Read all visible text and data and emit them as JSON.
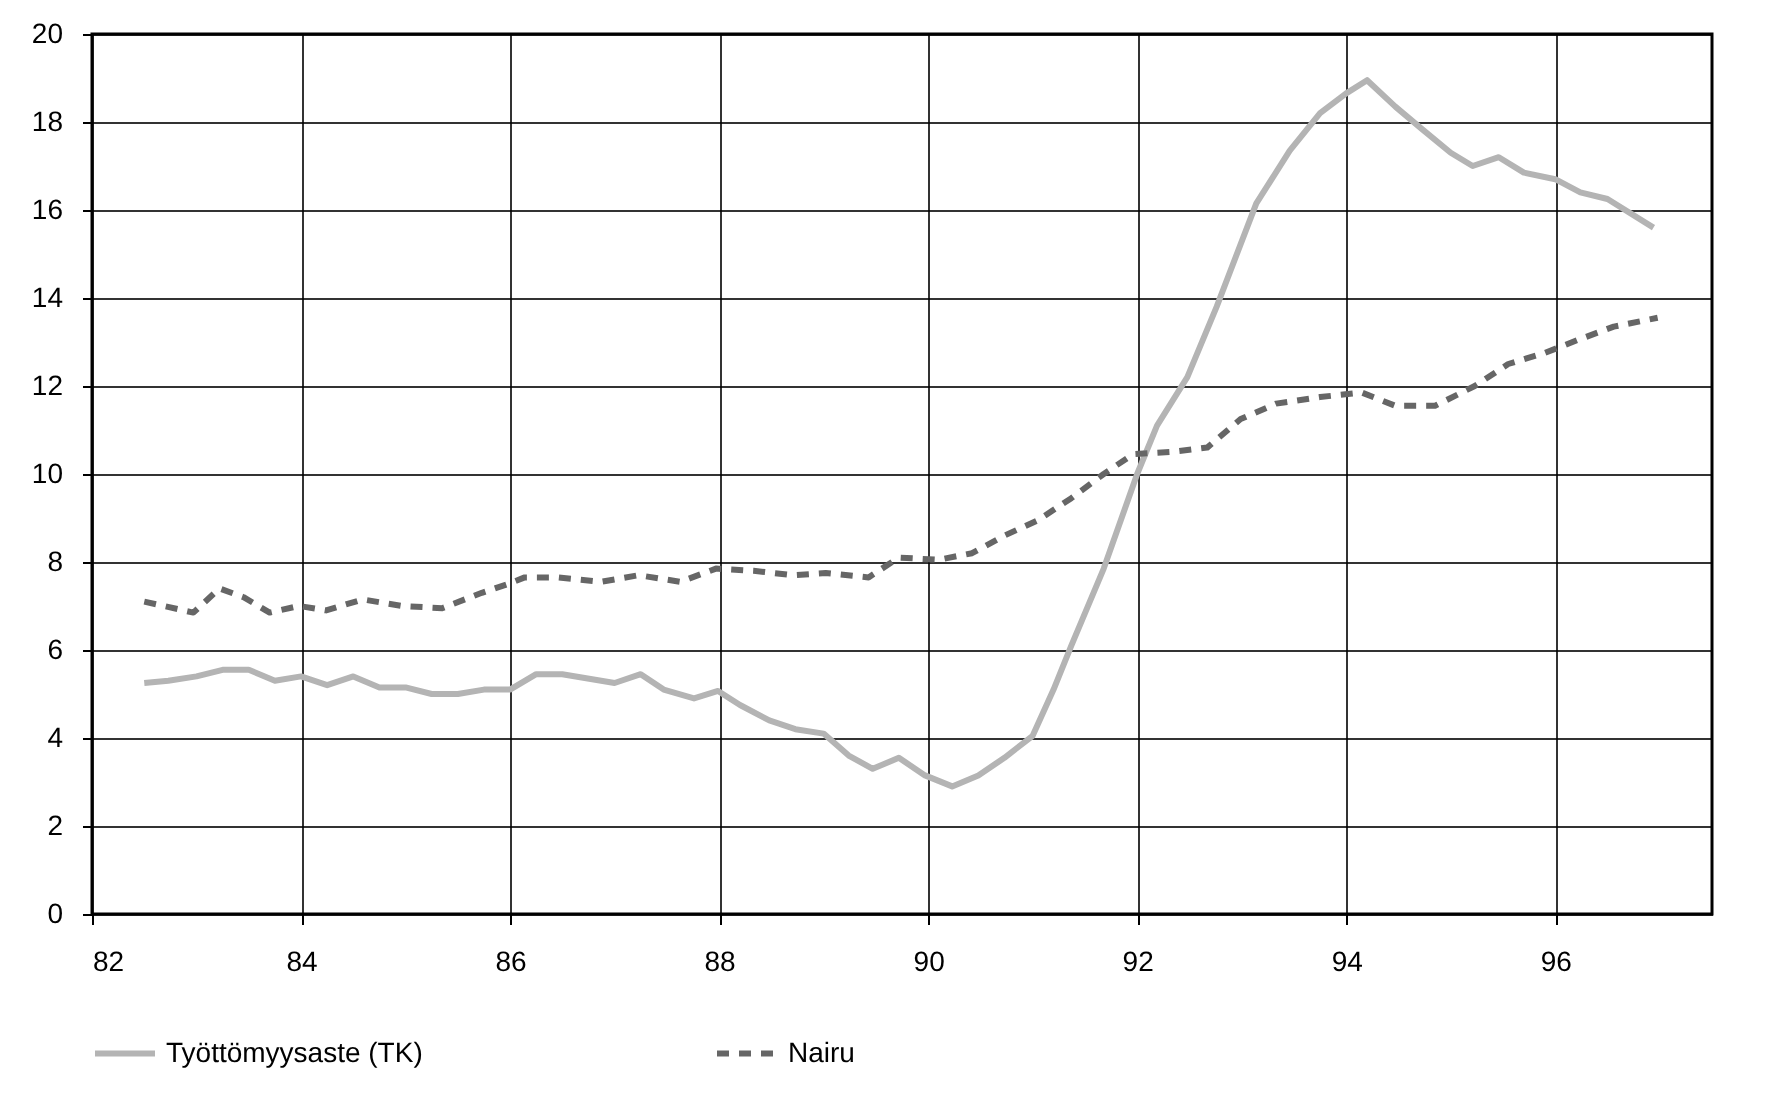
{
  "chart_data": {
    "type": "line",
    "xlim": [
      82,
      97.5
    ],
    "xticks": [
      82,
      84,
      86,
      88,
      90,
      92,
      94,
      96
    ],
    "ylim": [
      0,
      20
    ],
    "yticks": [
      0,
      2,
      4,
      6,
      8,
      10,
      12,
      14,
      16,
      18,
      20
    ],
    "grid": true,
    "legend": "bottom",
    "marker": "none",
    "series": [
      {
        "name": "Työttömyysaste (TK)",
        "color": "#b4b4b4",
        "line_style": "solid",
        "x": [
          82.5,
          82.73,
          83.0,
          83.25,
          83.5,
          83.75,
          84.0,
          84.25,
          84.5,
          84.75,
          85.0,
          85.25,
          85.5,
          85.75,
          86.0,
          86.25,
          86.5,
          87.0,
          87.25,
          87.47,
          87.76,
          87.99,
          88.2,
          88.48,
          88.73,
          89.0,
          89.24,
          89.47,
          89.72,
          89.97,
          90.23,
          90.48,
          90.73,
          91.0,
          91.2,
          91.37,
          91.68,
          92.0,
          92.19,
          92.48,
          92.76,
          93.14,
          93.46,
          93.75,
          94.0,
          94.2,
          94.47,
          94.72,
          95.0,
          95.21,
          95.46,
          95.7,
          96.0,
          96.24,
          96.5,
          96.94
        ],
        "values": [
          5.25,
          5.3,
          5.4,
          5.55,
          5.55,
          5.3,
          5.4,
          5.2,
          5.4,
          5.15,
          5.15,
          5.0,
          5.0,
          5.1,
          5.1,
          5.45,
          5.45,
          5.25,
          5.45,
          5.1,
          4.9,
          5.07,
          4.75,
          4.4,
          4.2,
          4.1,
          3.6,
          3.3,
          3.55,
          3.15,
          2.9,
          3.15,
          3.55,
          4.05,
          5.1,
          6.1,
          7.85,
          10.0,
          11.1,
          12.2,
          13.8,
          16.15,
          17.35,
          18.2,
          18.65,
          18.95,
          18.35,
          17.85,
          17.3,
          17.0,
          17.2,
          16.85,
          16.7,
          16.4,
          16.25,
          15.6
        ]
      },
      {
        "name": "Nairu",
        "color": "#666666",
        "line_style": "dashed",
        "x": [
          82.5,
          82.97,
          83.22,
          83.45,
          83.7,
          83.98,
          84.24,
          84.59,
          84.97,
          85.35,
          85.73,
          85.98,
          86.14,
          86.45,
          86.87,
          87.23,
          87.63,
          87.97,
          88.33,
          88.71,
          89.02,
          89.43,
          89.72,
          90.1,
          90.42,
          90.73,
          91.05,
          91.37,
          91.68,
          91.96,
          92.32,
          92.67,
          92.99,
          93.33,
          93.75,
          94.15,
          94.47,
          94.85,
          95.23,
          95.55,
          95.9,
          96.22,
          96.56,
          96.98
        ],
        "values": [
          7.1,
          6.85,
          7.4,
          7.2,
          6.85,
          7.0,
          6.9,
          7.15,
          7.0,
          6.95,
          7.3,
          7.5,
          7.65,
          7.65,
          7.55,
          7.7,
          7.55,
          7.85,
          7.8,
          7.7,
          7.75,
          7.65,
          8.1,
          8.05,
          8.2,
          8.6,
          8.95,
          9.45,
          10.0,
          10.45,
          10.5,
          10.6,
          11.25,
          11.6,
          11.75,
          11.85,
          11.55,
          11.55,
          12.0,
          12.5,
          12.75,
          13.05,
          13.35,
          13.55
        ]
      }
    ]
  }
}
